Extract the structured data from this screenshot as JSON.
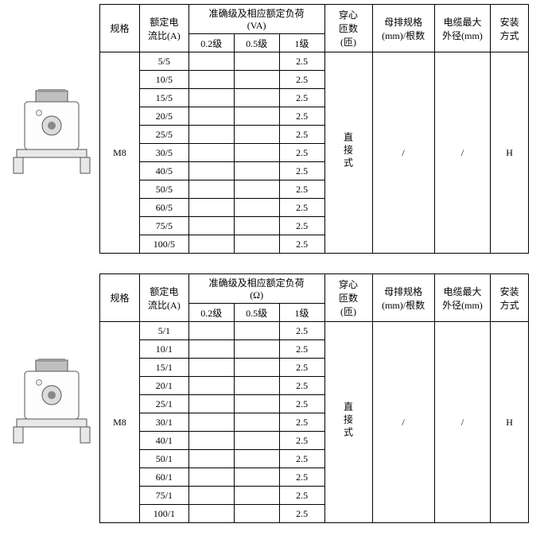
{
  "headers": {
    "spec": "规格",
    "ratedRatio": "额定电\n流比(A)",
    "accuracy_va": "准确级及相应额定负荷\n(VA)",
    "accuracy_ohm": "准确级及相应额定负荷\n(Ω)",
    "lvl02": "0.2级",
    "lvl05": "0.5级",
    "lvl1": "1级",
    "turns": "穿心\n匝数\n(匝)",
    "busbar": "母排规格\n(mm)/根数",
    "cable": "电缆最大\n外径(mm)",
    "install": "安装\n方式"
  },
  "table1": {
    "spec": "M8",
    "ratios": [
      "5/5",
      "10/5",
      "15/5",
      "20/5",
      "25/5",
      "30/5",
      "40/5",
      "50/5",
      "60/5",
      "75/5",
      "100/5"
    ],
    "lvl02": [
      "",
      "",
      "",
      "",
      "",
      "",
      "",
      "",
      "",
      "",
      ""
    ],
    "lvl05": [
      "",
      "",
      "",
      "",
      "",
      "",
      "",
      "",
      "",
      "",
      ""
    ],
    "lvl1": [
      "2.5",
      "2.5",
      "2.5",
      "2.5",
      "2.5",
      "2.5",
      "2.5",
      "2.5",
      "2.5",
      "2.5",
      "2.5"
    ],
    "turns": "直接式",
    "busbar": "/",
    "cable": "/",
    "install": "H"
  },
  "table2": {
    "spec": "M8",
    "ratios": [
      "5/1",
      "10/1",
      "15/1",
      "20/1",
      "25/1",
      "30/1",
      "40/1",
      "50/1",
      "60/1",
      "75/1",
      "100/1"
    ],
    "lvl02": [
      "",
      "",
      "",
      "",
      "",
      "",
      "",
      "",
      "",
      "",
      ""
    ],
    "lvl05": [
      "",
      "",
      "",
      "",
      "",
      "",
      "",
      "",
      "",
      "",
      ""
    ],
    "lvl1": [
      "2.5",
      "2.5",
      "2.5",
      "2.5",
      "2.5",
      "2.5",
      "2.5",
      "2.5",
      "2.5",
      "2.5",
      "2.5"
    ],
    "turns": "直接式",
    "busbar": "/",
    "cable": "/",
    "install": "H"
  }
}
